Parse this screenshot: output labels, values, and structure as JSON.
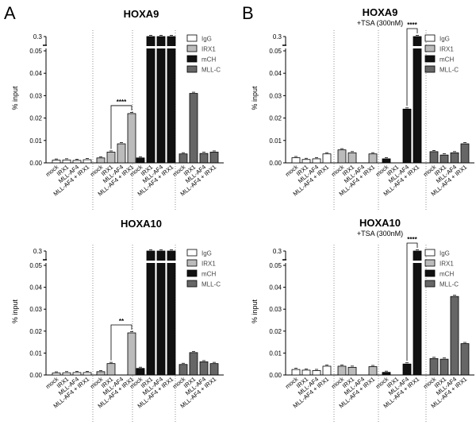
{
  "panel_letters": [
    "A",
    "B"
  ],
  "chart_data": [
    {
      "type": "bar",
      "panel": "A",
      "title": "HOXA9",
      "subtitle": "",
      "ylabel": "% input",
      "yticks": [
        "0.00",
        "0.01",
        "0.02",
        "0.03",
        "0.04",
        "0.05",
        "0.3"
      ],
      "y_axis_break": true,
      "categories": [
        "mock",
        "IRX1",
        "MLL-AF4",
        "MLL-AF4 + IRX1"
      ],
      "legend": [
        "IgG",
        "IRX1",
        "mCH",
        "MLL-C"
      ],
      "legend_placement": "top-right",
      "series": [
        {
          "name": "IgG",
          "color": "#ffffff",
          "values": [
            0.0012,
            0.0013,
            0.0011,
            0.0014
          ]
        },
        {
          "name": "IRX1",
          "color": "#bbbbbb",
          "values": [
            0.0022,
            0.0048,
            0.0085,
            0.022
          ]
        },
        {
          "name": "mCH",
          "color": "#111111",
          "values": [
            0.0022,
            0.3,
            0.3,
            0.3
          ]
        },
        {
          "name": "MLL-C",
          "color": "#666666",
          "values": [
            0.004,
            0.031,
            0.0042,
            0.0048
          ]
        }
      ],
      "significance": [
        {
          "series": "IRX1",
          "from": "IRX1",
          "to": "MLL-AF4 + IRX1",
          "label": "****"
        }
      ]
    },
    {
      "type": "bar",
      "panel": "B",
      "title": "HOXA9",
      "subtitle": "+TSA (300nM)",
      "ylabel": "% input",
      "yticks": [
        "0.00",
        "0.01",
        "0.02",
        "0.03",
        "0.04",
        "0.05",
        "0.3"
      ],
      "y_axis_break": true,
      "categories": [
        "mock",
        "IRX1",
        "MLL-AF4",
        "MLL-AF4 + IRX1"
      ],
      "legend": [
        "IgG",
        "IRX1",
        "mCH",
        "MLL-C"
      ],
      "legend_placement": "top-right",
      "series": [
        {
          "name": "IgG",
          "color": "#ffffff",
          "values": [
            0.0023,
            0.0015,
            0.0018,
            0.004
          ]
        },
        {
          "name": "IRX1",
          "color": "#bbbbbb",
          "values": [
            0.0058,
            0.0045,
            0.0,
            0.004
          ]
        },
        {
          "name": "mCH",
          "color": "#111111",
          "values": [
            0.0018,
            0.0,
            0.024,
            0.3
          ]
        },
        {
          "name": "MLL-C",
          "color": "#666666",
          "values": [
            0.005,
            0.0035,
            0.0045,
            0.0085
          ]
        }
      ],
      "significance": [
        {
          "series": "mCH",
          "from": "MLL-AF4",
          "to": "MLL-AF4 + IRX1",
          "label": "****"
        }
      ]
    },
    {
      "type": "bar",
      "panel": "A",
      "title": "HOXA10",
      "subtitle": "",
      "ylabel": "% input",
      "yticks": [
        "0.00",
        "0.01",
        "0.02",
        "0.03",
        "0.04",
        "0.05",
        "0.3"
      ],
      "y_axis_break": true,
      "categories": [
        "mock",
        "IRX1",
        "MLL-AF4",
        "MLL-AF4 + IRX1"
      ],
      "legend": [
        "IgG",
        "IRX1",
        "mCH",
        "MLL-C"
      ],
      "legend_placement": "top-right",
      "series": [
        {
          "name": "IgG",
          "color": "#ffffff",
          "values": [
            0.0009,
            0.001,
            0.0011,
            0.0011
          ]
        },
        {
          "name": "IRX1",
          "color": "#bbbbbb",
          "values": [
            0.0015,
            0.0052,
            0.0,
            0.0192
          ]
        },
        {
          "name": "mCH",
          "color": "#111111",
          "values": [
            0.003,
            0.3,
            0.3,
            0.3
          ]
        },
        {
          "name": "MLL-C",
          "color": "#666666",
          "values": [
            0.0048,
            0.0102,
            0.006,
            0.0052
          ]
        }
      ],
      "significance": [
        {
          "series": "IRX1",
          "from": "IRX1",
          "to": "MLL-AF4 + IRX1",
          "label": "**"
        }
      ]
    },
    {
      "type": "bar",
      "panel": "B",
      "title": "HOXA10",
      "subtitle": "+TSA (300nM)",
      "ylabel": "% input",
      "yticks": [
        "0.00",
        "0.01",
        "0.02",
        "0.03",
        "0.04",
        "0.05",
        "0.3"
      ],
      "y_axis_break": true,
      "categories": [
        "mock",
        "IRX1",
        "MLL-AF4",
        "MLL-AF4 + IRX1"
      ],
      "legend": [
        "IgG",
        "IRX1",
        "mCH",
        "MLL-C"
      ],
      "legend_placement": "top-right",
      "series": [
        {
          "name": "IgG",
          "color": "#ffffff",
          "values": [
            0.0025,
            0.0022,
            0.002,
            0.004
          ]
        },
        {
          "name": "IRX1",
          "color": "#bbbbbb",
          "values": [
            0.004,
            0.0035,
            0.0,
            0.0038
          ]
        },
        {
          "name": "mCH",
          "color": "#111111",
          "values": [
            0.0012,
            0.0,
            0.005,
            0.3
          ]
        },
        {
          "name": "MLL-C",
          "color": "#666666",
          "values": [
            0.0075,
            0.0072,
            0.0358,
            0.0143
          ]
        }
      ],
      "significance": [
        {
          "series": "mCH",
          "from": "MLL-AF4",
          "to": "MLL-AF4 + IRX1",
          "label": "****"
        }
      ]
    }
  ]
}
